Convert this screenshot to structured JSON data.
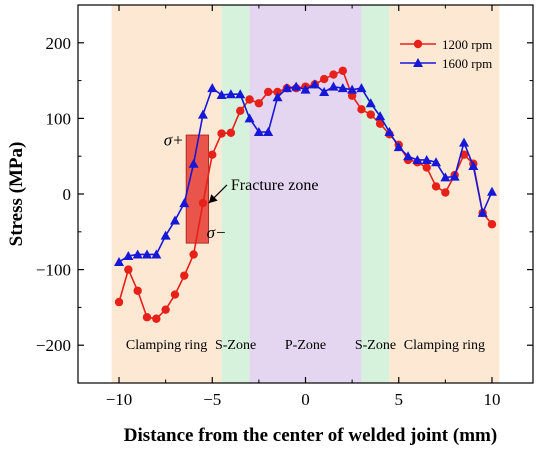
{
  "chart_data": {
    "type": "line",
    "xlabel": "Distance from the center of welded joint (mm)",
    "ylabel": "Stress (MPa)",
    "xlim": [
      -12.2,
      12.2
    ],
    "ylim": [
      -250,
      250
    ],
    "xticks": [
      -10,
      -5,
      0,
      5,
      10
    ],
    "yticks": [
      200,
      100,
      0,
      -100,
      -200
    ],
    "xtick_labels": [
      "−10",
      "−5",
      "0",
      "5",
      "10"
    ],
    "ytick_labels": [
      "200",
      "100",
      "0",
      "−100",
      "−200"
    ],
    "legend_position": "top-right",
    "zones": [
      {
        "label": "Clamping ring",
        "x0": -10.4,
        "x1": -4.5,
        "color": "#fde8d4"
      },
      {
        "label": "S-Zone",
        "x0": -4.5,
        "x1": -3.0,
        "color": "#d6f2dc"
      },
      {
        "label": "P-Zone",
        "x0": -3.0,
        "x1": 3.0,
        "color": "#e4d6f0"
      },
      {
        "label": "S-Zone",
        "x0": 3.0,
        "x1": 4.5,
        "color": "#d6f2dc"
      },
      {
        "label": "Clamping ring",
        "x0": 4.5,
        "x1": 10.4,
        "color": "#fde8d4"
      }
    ],
    "fracture_zone": {
      "label": "Fracture zone",
      "x0": -6.4,
      "x1": -5.2,
      "y0": -65,
      "y1": 78,
      "color": "#e8453c",
      "sigma_plus": "σ+",
      "sigma_minus": "σ−",
      "label_at": [
        -4.0,
        12
      ],
      "arrow_to": [
        -5.4,
        -12
      ],
      "sigma_plus_at": [
        -7.6,
        64
      ],
      "sigma_minus_at": [
        -5.3,
        -58
      ]
    },
    "series": [
      {
        "name": "1200 rpm",
        "color": "#e8201a",
        "marker": "circle",
        "x": [
          -10,
          -9.5,
          -9,
          -8.5,
          -8,
          -7.5,
          -7,
          -6.5,
          -6,
          -5.5,
          -5,
          -4.5,
          -4,
          -3.5,
          -3,
          -2.5,
          -2,
          -1.5,
          -1,
          -0.5,
          0,
          0.5,
          1,
          1.5,
          2,
          2.5,
          3,
          3.5,
          4,
          4.5,
          5,
          5.5,
          6,
          6.5,
          7,
          7.5,
          8,
          8.5,
          9,
          9.5,
          10
        ],
        "y": [
          -143,
          -100,
          -128,
          -163,
          -165,
          -153,
          -133,
          -108,
          -80,
          -12,
          52,
          80,
          81,
          110,
          125,
          120,
          135,
          135,
          140,
          140,
          142,
          145,
          152,
          158,
          163,
          130,
          112,
          105,
          93,
          79,
          65,
          45,
          42,
          35,
          10,
          2,
          25,
          52,
          40,
          -25,
          -40
        ]
      },
      {
        "name": "1600 rpm",
        "color": "#1717d8",
        "marker": "triangle",
        "x": [
          -10,
          -9.5,
          -9,
          -8.5,
          -8,
          -7.5,
          -7,
          -6.5,
          -6,
          -5.5,
          -5,
          -4.5,
          -4,
          -3.5,
          -3,
          -2.5,
          -2,
          -1.5,
          -1,
          -0.5,
          0,
          0.5,
          1,
          1.5,
          2,
          2.5,
          3,
          3.5,
          4,
          4.5,
          5,
          5.5,
          6,
          6.5,
          7,
          7.5,
          8,
          8.5,
          9,
          9.5,
          10
        ],
        "y": [
          -90,
          -82,
          -80,
          -80,
          -80,
          -55,
          -35,
          -12,
          40,
          105,
          140,
          131,
          132,
          132,
          100,
          82,
          82,
          128,
          140,
          142,
          138,
          145,
          135,
          142,
          140,
          138,
          140,
          120,
          103,
          82,
          62,
          50,
          45,
          45,
          42,
          22,
          23,
          68,
          37,
          -25,
          3
        ]
      }
    ]
  }
}
